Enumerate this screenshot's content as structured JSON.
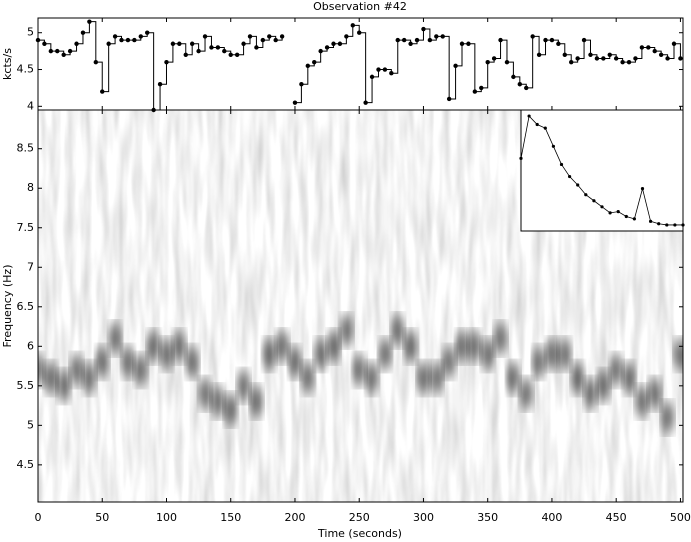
{
  "chart_data": [
    {
      "type": "step",
      "title": "Observation #42",
      "ylabel": "kcts/s",
      "x": [
        0,
        5,
        10,
        15,
        20,
        25,
        30,
        35,
        40,
        45,
        50,
        55,
        60,
        65,
        70,
        75,
        80,
        85,
        90,
        95,
        100,
        105,
        110,
        115,
        120,
        125,
        130,
        135,
        140,
        145,
        150,
        155,
        160,
        165,
        170,
        175,
        180,
        185,
        190,
        195,
        200,
        205,
        210,
        215,
        220,
        225,
        230,
        235,
        240,
        245,
        250,
        255,
        260,
        265,
        270,
        275,
        280,
        285,
        290,
        295,
        300,
        305,
        310,
        315,
        320,
        325,
        330,
        335,
        340,
        345,
        350,
        355,
        360,
        365,
        370,
        375,
        380,
        385,
        390,
        395,
        400,
        405,
        410,
        415,
        420,
        425,
        430,
        435,
        440,
        445,
        450,
        455,
        460,
        465,
        470,
        475,
        480,
        485,
        490,
        495,
        500
      ],
      "values": [
        4.9,
        4.85,
        4.75,
        4.75,
        4.7,
        4.75,
        4.85,
        5.0,
        5.15,
        4.6,
        4.2,
        4.85,
        4.95,
        4.9,
        4.9,
        4.9,
        4.95,
        5.0,
        3.95,
        4.3,
        4.6,
        4.85,
        4.85,
        4.7,
        4.85,
        4.75,
        4.95,
        4.8,
        4.8,
        4.75,
        4.7,
        4.7,
        4.85,
        4.95,
        4.8,
        4.9,
        4.95,
        4.9,
        4.95,
        null,
        4.05,
        4.3,
        4.55,
        4.6,
        4.75,
        4.8,
        4.85,
        4.85,
        4.95,
        5.1,
        5.0,
        4.05,
        4.4,
        4.5,
        4.5,
        4.45,
        4.9,
        4.9,
        4.85,
        4.9,
        5.05,
        4.9,
        4.95,
        4.95,
        4.1,
        4.55,
        4.85,
        4.85,
        4.2,
        4.25,
        4.6,
        4.65,
        4.9,
        4.6,
        4.4,
        4.3,
        4.25,
        4.95,
        4.7,
        4.9,
        4.9,
        4.85,
        4.7,
        4.6,
        4.65,
        4.9,
        4.7,
        4.65,
        4.65,
        4.7,
        4.65,
        4.6,
        4.6,
        4.65,
        4.8,
        4.8,
        4.75,
        4.7,
        4.65,
        4.85,
        4.65
      ],
      "color": "#000000",
      "xlim": [
        0,
        502
      ],
      "ylim": [
        3.95,
        5.2
      ],
      "yticks": [
        4,
        4.5,
        5
      ],
      "xticks": [
        0,
        50,
        100,
        150,
        200,
        250,
        300,
        350,
        400,
        450,
        500
      ]
    },
    {
      "type": "spectrogram",
      "xlabel": "Time (seconds)",
      "ylabel": "Frequency (Hz)",
      "x": [
        0,
        10,
        20,
        30,
        40,
        50,
        60,
        70,
        80,
        90,
        100,
        110,
        120,
        130,
        140,
        150,
        160,
        170,
        180,
        190,
        200,
        210,
        220,
        230,
        240,
        250,
        260,
        270,
        280,
        290,
        300,
        310,
        320,
        330,
        340,
        350,
        360,
        370,
        380,
        390,
        400,
        410,
        420,
        430,
        440,
        450,
        460,
        470,
        480,
        490,
        500
      ],
      "values": [
        5.7,
        5.6,
        5.5,
        5.7,
        5.6,
        5.8,
        6.1,
        5.8,
        5.7,
        6.0,
        5.9,
        6.0,
        5.8,
        5.4,
        5.3,
        5.2,
        5.5,
        5.3,
        5.9,
        6.0,
        5.8,
        5.6,
        5.9,
        6.0,
        6.2,
        5.7,
        5.6,
        5.9,
        6.2,
        6.0,
        5.6,
        5.6,
        5.8,
        6.0,
        6.0,
        5.9,
        6.1,
        5.6,
        5.4,
        5.8,
        5.9,
        5.9,
        5.6,
        5.4,
        5.5,
        5.7,
        5.6,
        5.3,
        5.4,
        5.1,
        5.9
      ],
      "color": "#000000",
      "xlim": [
        0,
        502
      ],
      "ylim": [
        4.03,
        8.99
      ],
      "xticks": [
        0,
        50,
        100,
        150,
        200,
        250,
        300,
        350,
        400,
        450,
        500
      ],
      "yticks": [
        4.5,
        5,
        5.5,
        6,
        6.5,
        7,
        7.5,
        8,
        8.5
      ]
    },
    {
      "type": "scatter",
      "x": [
        0,
        5,
        10,
        15,
        20,
        25,
        30,
        35,
        40,
        45,
        50,
        55,
        60,
        65,
        70,
        75,
        80,
        85,
        90,
        95,
        100
      ],
      "values": [
        60,
        95,
        88,
        85,
        70,
        55,
        45,
        38,
        30,
        25,
        20,
        15,
        16,
        12,
        10,
        35,
        8,
        6,
        5,
        5,
        5
      ],
      "color": "#000000",
      "xlim": [
        0,
        100
      ],
      "ylim": [
        0,
        100
      ]
    }
  ]
}
